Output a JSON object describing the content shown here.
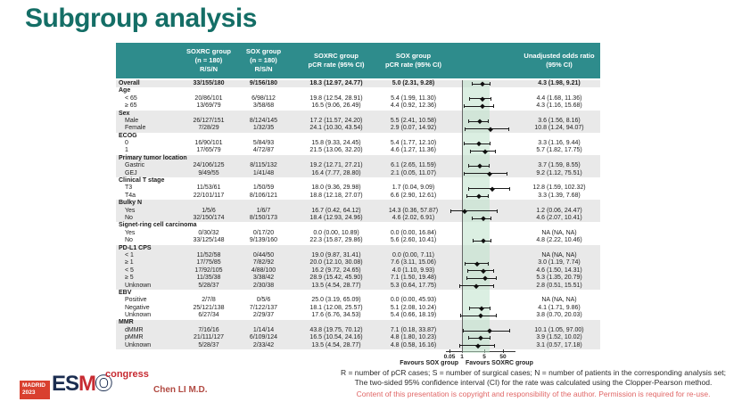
{
  "title": "Subgroup analysis",
  "colors": {
    "header_teal": "#2e8c8c",
    "title_teal": "#146e66",
    "stripe_gray": "#e9e9e9",
    "band_green": "#bee2ca",
    "logo_red": "#d9402f",
    "copyright_red": "#e06666"
  },
  "table": {
    "headers": {
      "soxrc_rsn": "SOXRC group\n(n = 180)\nR/S/N",
      "sox_rsn": "SOX group\n(n = 180)\nR/S/N",
      "soxrc_pcr": "SOXRC group\npCR rate (95% CI)",
      "sox_pcr": "SOX group\npCR rate (95% CI)",
      "odds_ratio": "Unadjusted odds ratio\n(95% CI)"
    }
  },
  "chart_data": {
    "type": "forest",
    "x_axis": {
      "scale": "log",
      "tick_values": [
        0.05,
        1,
        5,
        50
      ],
      "tick_labels": [
        "0.05",
        "1",
        "5",
        "50"
      ],
      "reference_line": 1,
      "shaded_band": [
        1,
        10
      ]
    },
    "favours_left": "Favours SOX group",
    "favours_right": "Favours SOXRC group",
    "groups": [
      {
        "label": null,
        "shade": true,
        "rows": [
          {
            "label": "Overall",
            "bold": true,
            "soxrc_rsn": "33/155/180",
            "sox_rsn": "9/156/180",
            "soxrc_pcr": "18.3 (12.97, 24.77)",
            "sox_pcr": "5.0 (2.31, 9.28)",
            "or_text": "4.3 (1.98, 9.21)",
            "or": 4.3,
            "lo": 1.98,
            "hi": 9.21
          }
        ]
      },
      {
        "label": "Age",
        "shade": false,
        "rows": [
          {
            "label": "< 65",
            "soxrc_rsn": "20/86/101",
            "sox_rsn": "6/98/112",
            "soxrc_pcr": "19.8 (12.54, 28.91)",
            "sox_pcr": "5.4 (1.99, 11.30)",
            "or_text": "4.4 (1.68, 11.36)",
            "or": 4.4,
            "lo": 1.68,
            "hi": 11.36
          },
          {
            "label": "≥ 65",
            "soxrc_rsn": "13/69/79",
            "sox_rsn": "3/58/68",
            "soxrc_pcr": "16.5 (9.06, 26.49)",
            "sox_pcr": "4.4 (0.92, 12.36)",
            "or_text": "4.3 (1.16, 15.68)",
            "or": 4.3,
            "lo": 1.16,
            "hi": 15.68
          }
        ]
      },
      {
        "label": "Sex",
        "shade": true,
        "rows": [
          {
            "label": "Male",
            "soxrc_rsn": "26/127/151",
            "sox_rsn": "8/124/145",
            "soxrc_pcr": "17.2 (11.57, 24.20)",
            "sox_pcr": "5.5 (2.41, 10.58)",
            "or_text": "3.6 (1.56, 8.16)",
            "or": 3.6,
            "lo": 1.56,
            "hi": 8.16
          },
          {
            "label": "Female",
            "soxrc_rsn": "7/28/29",
            "sox_rsn": "1/32/35",
            "soxrc_pcr": "24.1 (10.30, 43.54)",
            "sox_pcr": "2.9 (0.07, 14.92)",
            "or_text": "10.8 (1.24, 94.07)",
            "or": 10.8,
            "lo": 1.24,
            "hi": 94.07
          }
        ]
      },
      {
        "label": "ECOG",
        "shade": false,
        "rows": [
          {
            "label": "0",
            "soxrc_rsn": "16/90/101",
            "sox_rsn": "5/84/93",
            "soxrc_pcr": "15.8 (9.33, 24.45)",
            "sox_pcr": "5.4 (1.77, 12.10)",
            "or_text": "3.3 (1.16, 9.44)",
            "or": 3.3,
            "lo": 1.16,
            "hi": 9.44
          },
          {
            "label": "1",
            "soxrc_rsn": "17/65/79",
            "sox_rsn": "4/72/87",
            "soxrc_pcr": "21.5 (13.06, 32.20)",
            "sox_pcr": "4.6 (1.27, 11.36)",
            "or_text": "5.7 (1.82, 17.75)",
            "or": 5.7,
            "lo": 1.82,
            "hi": 17.75
          }
        ]
      },
      {
        "label": "Primary tumor location",
        "shade": true,
        "rows": [
          {
            "label": "Gastric",
            "soxrc_rsn": "24/106/125",
            "sox_rsn": "8/115/132",
            "soxrc_pcr": "19.2 (12.71, 27.21)",
            "sox_pcr": "6.1 (2.65, 11.59)",
            "or_text": "3.7 (1.59, 8.55)",
            "or": 3.7,
            "lo": 1.59,
            "hi": 8.55
          },
          {
            "label": "GEJ",
            "soxrc_rsn": "9/49/55",
            "sox_rsn": "1/41/48",
            "soxrc_pcr": "16.4 (7.77, 28.80)",
            "sox_pcr": "2.1 (0.05, 11.07)",
            "or_text": "9.2 (1.12, 75.51)",
            "or": 9.2,
            "lo": 1.12,
            "hi": 75.51
          }
        ]
      },
      {
        "label": "Clinical T stage",
        "shade": false,
        "rows": [
          {
            "label": "T3",
            "soxrc_rsn": "11/53/61",
            "sox_rsn": "1/50/59",
            "soxrc_pcr": "18.0 (9.36, 29.98)",
            "sox_pcr": "1.7 (0.04, 9.09)",
            "or_text": "12.8 (1.59, 102.32)",
            "or": 12.8,
            "lo": 1.59,
            "hi": 102.32
          },
          {
            "label": "T4a",
            "soxrc_rsn": "22/101/117",
            "sox_rsn": "8/106/121",
            "soxrc_pcr": "18.8 (12.18, 27.07)",
            "sox_pcr": "6.6 (2.90, 12.61)",
            "or_text": "3.3 (1.39, 7.68)",
            "or": 3.3,
            "lo": 1.39,
            "hi": 7.68
          }
        ]
      },
      {
        "label": "Bulky N",
        "shade": true,
        "rows": [
          {
            "label": "Yes",
            "soxrc_rsn": "1/5/6",
            "sox_rsn": "1/6/7",
            "soxrc_pcr": "16.7 (0.42, 64.12)",
            "sox_pcr": "14.3 (0.36, 57.87)",
            "or_text": "1.2 (0.06, 24.47)",
            "or": 1.2,
            "lo": 0.06,
            "hi": 24.47
          },
          {
            "label": "No",
            "soxrc_rsn": "32/150/174",
            "sox_rsn": "8/150/173",
            "soxrc_pcr": "18.4 (12.93, 24.96)",
            "sox_pcr": "4.6 (2.02, 6.91)",
            "or_text": "4.6 (2.07, 10.41)",
            "or": 4.6,
            "lo": 2.07,
            "hi": 10.41
          }
        ]
      },
      {
        "label": "Signet-ring cell carcinoma",
        "shade": false,
        "rows": [
          {
            "label": "Yes",
            "soxrc_rsn": "0/30/32",
            "sox_rsn": "0/17/20",
            "soxrc_pcr": "0.0 (0.00, 10.89)",
            "sox_pcr": "0.0 (0.00, 16.84)",
            "or_text": "NA (NA, NA)",
            "or": null,
            "lo": null,
            "hi": null
          },
          {
            "label": "No",
            "soxrc_rsn": "33/125/148",
            "sox_rsn": "9/139/160",
            "soxrc_pcr": "22.3 (15.87, 29.86)",
            "sox_pcr": "5.6 (2.60, 10.41)",
            "or_text": "4.8 (2.22, 10.46)",
            "or": 4.8,
            "lo": 2.22,
            "hi": 10.46
          }
        ]
      },
      {
        "label": "PD-L1 CPS",
        "shade": true,
        "rows": [
          {
            "label": "< 1",
            "soxrc_rsn": "11/52/58",
            "sox_rsn": "0/44/50",
            "soxrc_pcr": "19.0 (9.87, 31.41)",
            "sox_pcr": "0.0 (0.00, 7.11)",
            "or_text": "NA (NA, NA)",
            "or": null,
            "lo": null,
            "hi": null
          },
          {
            "label": "≥ 1",
            "soxrc_rsn": "17/75/85",
            "sox_rsn": "7/82/92",
            "soxrc_pcr": "20.0 (12.10, 30.08)",
            "sox_pcr": "7.6 (3.11, 15.06)",
            "or_text": "3.0 (1.19, 7.74)",
            "or": 3.0,
            "lo": 1.19,
            "hi": 7.74
          },
          {
            "label": "< 5",
            "soxrc_rsn": "17/92/105",
            "sox_rsn": "4/88/100",
            "soxrc_pcr": "16.2 (9.72, 24.65)",
            "sox_pcr": "4.0 (1.10, 9.93)",
            "or_text": "4.6 (1.50, 14.31)",
            "or": 4.6,
            "lo": 1.5,
            "hi": 14.31
          },
          {
            "label": "≥ 5",
            "soxrc_rsn": "11/35/38",
            "sox_rsn": "3/38/42",
            "soxrc_pcr": "28.9 (15.42, 45.90)",
            "sox_pcr": "7.1 (1.50, 19.48)",
            "or_text": "5.3 (1.35, 20.79)",
            "or": 5.3,
            "lo": 1.35,
            "hi": 20.79
          },
          {
            "label": "Unknown",
            "soxrc_rsn": "5/28/37",
            "sox_rsn": "2/30/38",
            "soxrc_pcr": "13.5 (4.54, 28.77)",
            "sox_pcr": "5.3 (0.64, 17.75)",
            "or_text": "2.8 (0.51, 15.51)",
            "or": 2.8,
            "lo": 0.51,
            "hi": 15.51
          }
        ]
      },
      {
        "label": "EBV",
        "shade": false,
        "rows": [
          {
            "label": "Positive",
            "soxrc_rsn": "2/7/8",
            "sox_rsn": "0/5/6",
            "soxrc_pcr": "25.0 (3.19, 65.09)",
            "sox_pcr": "0.0 (0.00, 45.93)",
            "or_text": "NA (NA, NA)",
            "or": null,
            "lo": null,
            "hi": null
          },
          {
            "label": "Negative",
            "soxrc_rsn": "25/121/138",
            "sox_rsn": "7/122/137",
            "soxrc_pcr": "18.1 (12.08, 25.57)",
            "sox_pcr": "5.1 (2.08, 10.24)",
            "or_text": "4.1 (1.71, 9.86)",
            "or": 4.1,
            "lo": 1.71,
            "hi": 9.86
          },
          {
            "label": "Unknown",
            "soxrc_rsn": "6/27/34",
            "sox_rsn": "2/29/37",
            "soxrc_pcr": "17.6 (6.76, 34.53)",
            "sox_pcr": "5.4 (0.66, 18.19)",
            "or_text": "3.8 (0.70, 20.03)",
            "or": 3.8,
            "lo": 0.7,
            "hi": 20.03
          }
        ]
      },
      {
        "label": "MMR",
        "shade": true,
        "rows": [
          {
            "label": "dMMR",
            "soxrc_rsn": "7/16/16",
            "sox_rsn": "1/14/14",
            "soxrc_pcr": "43.8 (19.75, 70.12)",
            "sox_pcr": "7.1 (0.18, 33.87)",
            "or_text": "10.1 (1.05, 97.00)",
            "or": 10.1,
            "lo": 1.05,
            "hi": 97.0
          },
          {
            "label": "pMMR",
            "soxrc_rsn": "21/111/127",
            "sox_rsn": "6/109/124",
            "soxrc_pcr": "16.5 (10.54, 24.16)",
            "sox_pcr": "4.8 (1.80, 10.23)",
            "or_text": "3.9 (1.52, 10.02)",
            "or": 3.9,
            "lo": 1.52,
            "hi": 10.02
          },
          {
            "label": "Unknown",
            "soxrc_rsn": "5/28/37",
            "sox_rsn": "2/33/42",
            "soxrc_pcr": "13.5 (4.54, 28.77)",
            "sox_pcr": "4.8 (0.58, 16.16)",
            "or_text": "3.1 (0.57, 17.18)",
            "or": 3.1,
            "lo": 0.57,
            "hi": 17.18
          }
        ]
      }
    ]
  },
  "footnotes": {
    "line1": "R = number of pCR cases; S = number of surgical cases; N = number of patients in the corresponding analysis set;",
    "line2": "The two-sided 95% confidence interval (CI) for the rate was calculated using the Clopper-Pearson method.",
    "copyright": "Content of this presentation is copyright and responsibility of the author. Permission is required for re-use."
  },
  "footer": {
    "logo_city": "MADRID",
    "logo_year": "2023",
    "logo_e": "E",
    "logo_s": "S",
    "logo_m": "M",
    "logo_o": "O",
    "logo_congress": "congress",
    "author": "Chen LI M.D."
  }
}
